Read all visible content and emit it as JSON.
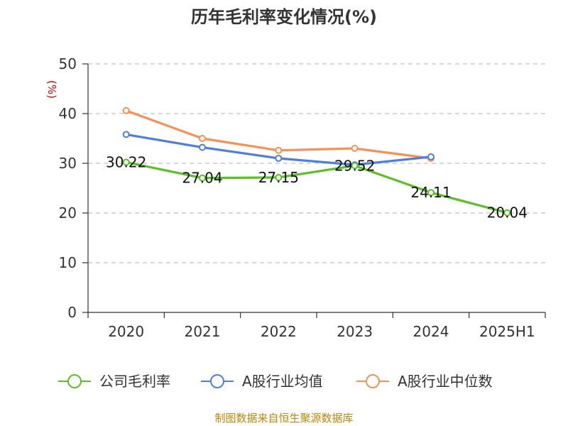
{
  "chart_data": {
    "type": "line",
    "title": "历年毛利率变化情况(%)",
    "ylabel": "(%)",
    "xlabel": "",
    "ylim": [
      0,
      50
    ],
    "yticks": [
      0,
      10,
      20,
      30,
      40,
      50
    ],
    "grid": true,
    "categories": [
      "2020",
      "2021",
      "2022",
      "2023",
      "2024",
      "2025H1"
    ],
    "series": [
      {
        "name": "公司毛利率",
        "color": "#5cbf2a",
        "values": [
          30.22,
          27.04,
          27.15,
          29.52,
          24.11,
          20.04
        ],
        "labels": [
          "30.22",
          "27.04",
          "27.15",
          "29.52",
          "24.11",
          "20.04"
        ]
      },
      {
        "name": "A股行业均值",
        "color": "#4f7fdb",
        "values": [
          35.8,
          33.2,
          31.0,
          29.7,
          31.3,
          null
        ]
      },
      {
        "name": "A股行业中位数",
        "color": "#f59157",
        "values": [
          40.6,
          35.0,
          32.6,
          33.0,
          31.0,
          null
        ]
      }
    ],
    "legend_position": "bottom"
  },
  "source": "制图数据来自恒生聚源数据库"
}
